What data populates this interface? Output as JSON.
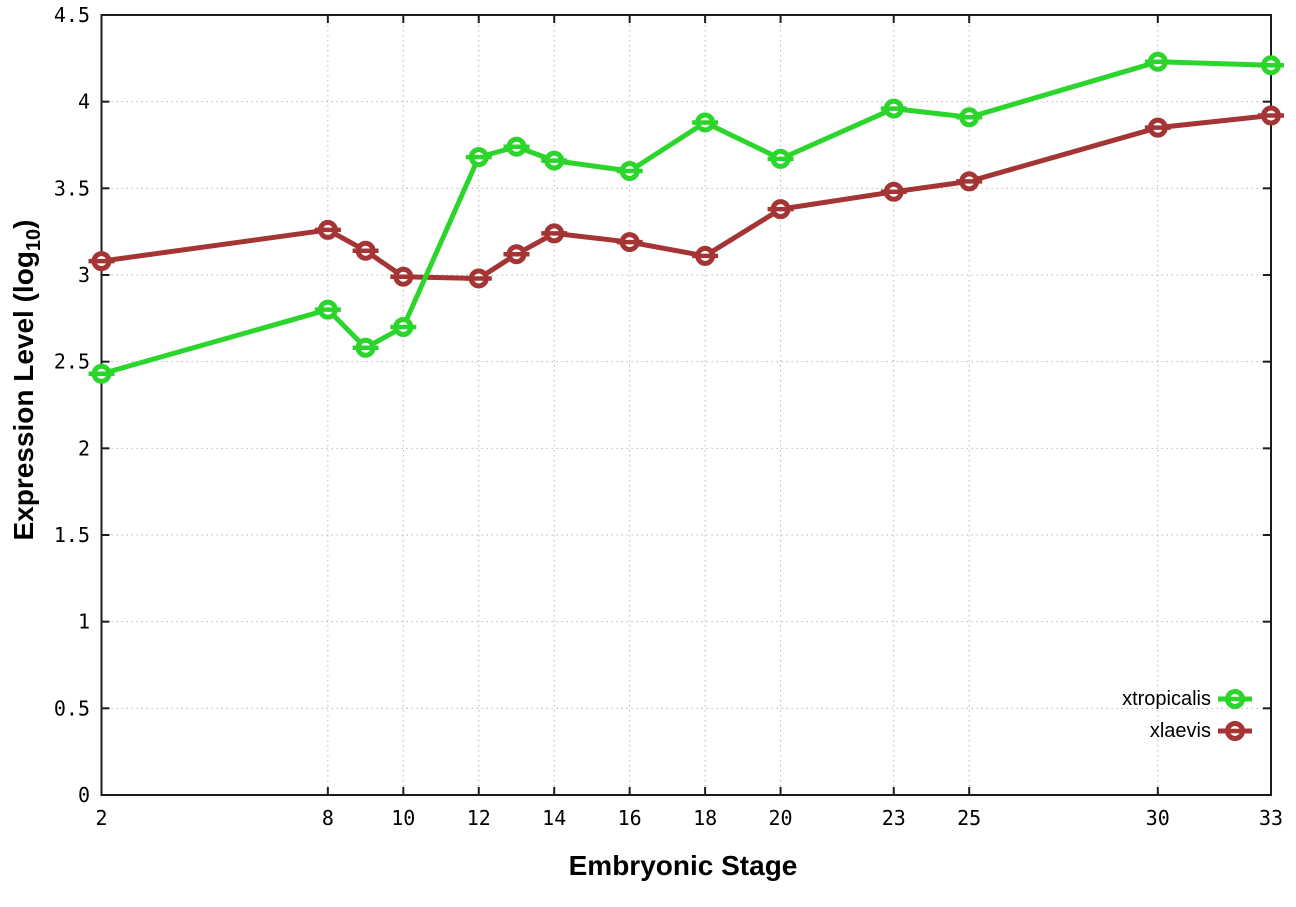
{
  "figure": {
    "background": "#ffffff"
  },
  "chart_data": {
    "type": "line",
    "title": "",
    "xlabel": "Embryonic Stage",
    "ylabel": "Expression Level (log10)",
    "ylabel_parts": {
      "pre": "Expression Level (log",
      "sub": "10",
      "post": ")"
    },
    "xlim": [
      2,
      33
    ],
    "ylim": [
      0,
      4.5
    ],
    "grid": true,
    "legend_position": "bottom-right-inside",
    "xticks": [
      2,
      8,
      10,
      12,
      14,
      16,
      18,
      20,
      23,
      25,
      30,
      33
    ],
    "xtick_labels": [
      "2",
      "8",
      "10",
      "12",
      "14",
      "16",
      "18",
      "20",
      "23",
      "25",
      "30",
      "33"
    ],
    "yticks": [
      0,
      0.5,
      1,
      1.5,
      2,
      2.5,
      3,
      3.5,
      4,
      4.5
    ],
    "ytick_labels": [
      "0",
      "0.5",
      "1",
      "1.5",
      "2",
      "2.5",
      "3",
      "3.5",
      "4",
      "4.5"
    ],
    "x": [
      2,
      8,
      9,
      10,
      12,
      13,
      14,
      16,
      18,
      20,
      23,
      25,
      30,
      33
    ],
    "series": [
      {
        "name": "xtropicalis",
        "color": "#2bd52b",
        "values": [
          2.43,
          2.8,
          2.58,
          2.7,
          3.68,
          3.74,
          3.66,
          3.6,
          3.88,
          3.67,
          3.96,
          3.91,
          4.23,
          4.21
        ]
      },
      {
        "name": "xlaevis",
        "color": "#a43534",
        "values": [
          3.08,
          3.26,
          3.14,
          2.99,
          2.98,
          3.12,
          3.24,
          3.19,
          3.11,
          3.38,
          3.48,
          3.54,
          3.85,
          3.92
        ]
      }
    ],
    "colors": {
      "grid": "#b8b8b8",
      "axis": "#1c1c1c",
      "text": "#000000"
    }
  }
}
